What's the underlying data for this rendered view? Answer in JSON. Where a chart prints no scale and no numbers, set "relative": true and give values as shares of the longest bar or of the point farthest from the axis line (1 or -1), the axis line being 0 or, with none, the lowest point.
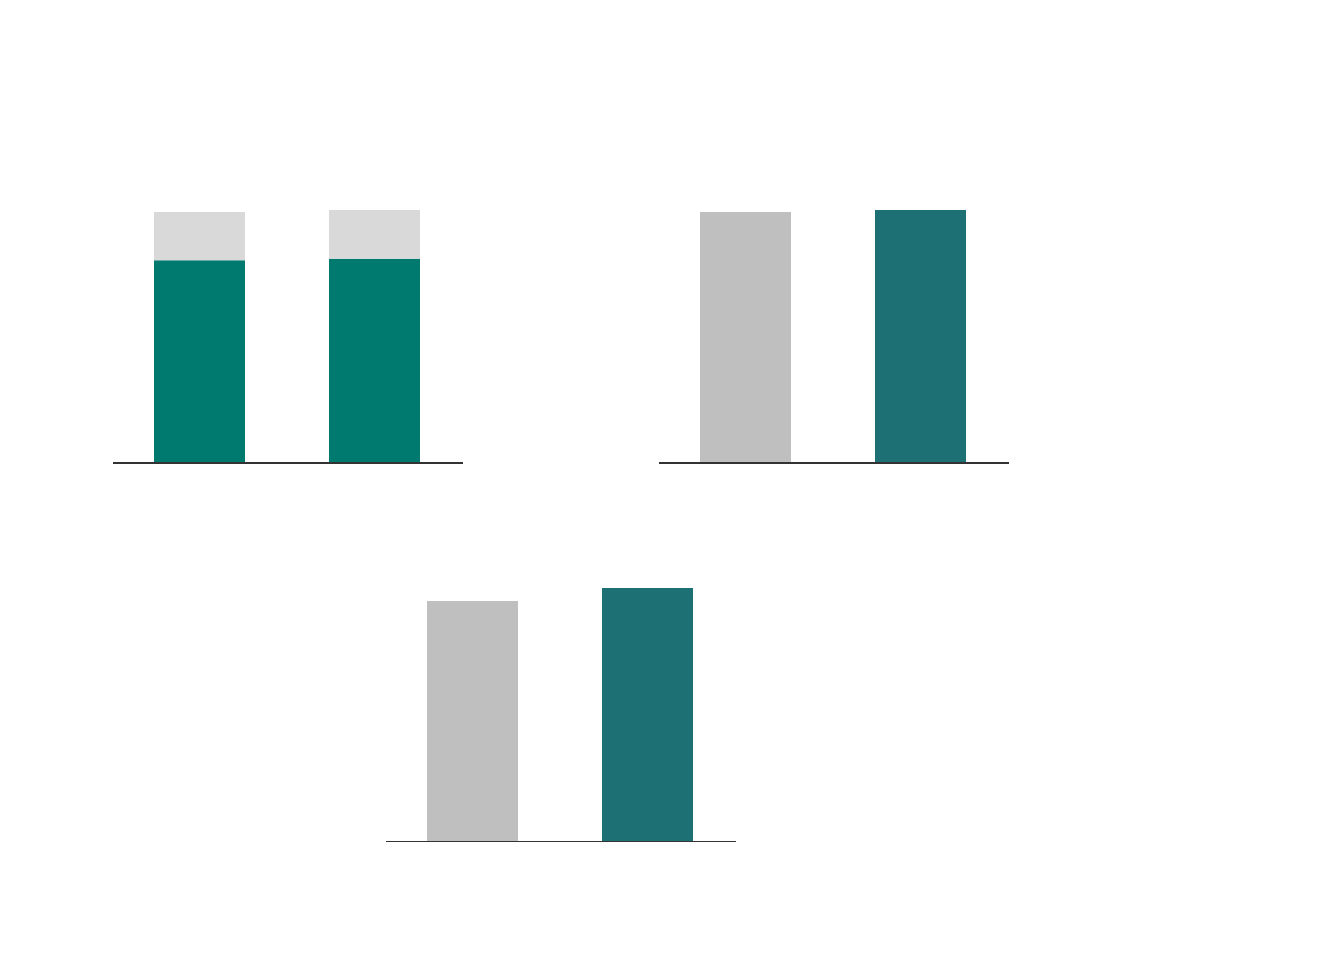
{
  "chart_data": [
    {
      "type": "bar",
      "relative": true,
      "stacked": true,
      "categories": [
        null,
        null
      ],
      "tick_labels": false,
      "grid": false,
      "series": [
        {
          "color": "#007a6e",
          "values": [
            0.802,
            0.809
          ]
        },
        {
          "color": "#d9d9d9",
          "values": [
            0.191,
            0.191
          ]
        }
      ]
    },
    {
      "type": "bar",
      "relative": true,
      "categories": [
        null,
        null
      ],
      "tick_labels": false,
      "grid": false,
      "colors": [
        "#bfbfbf",
        "#1d7074"
      ],
      "values": [
        0.993,
        1
      ]
    },
    {
      "type": "bar",
      "relative": true,
      "categories": [
        null,
        null
      ],
      "tick_labels": false,
      "grid": false,
      "colors": [
        "#bfbfbf",
        "#1d7074"
      ],
      "values": [
        0.95,
        1
      ]
    }
  ]
}
